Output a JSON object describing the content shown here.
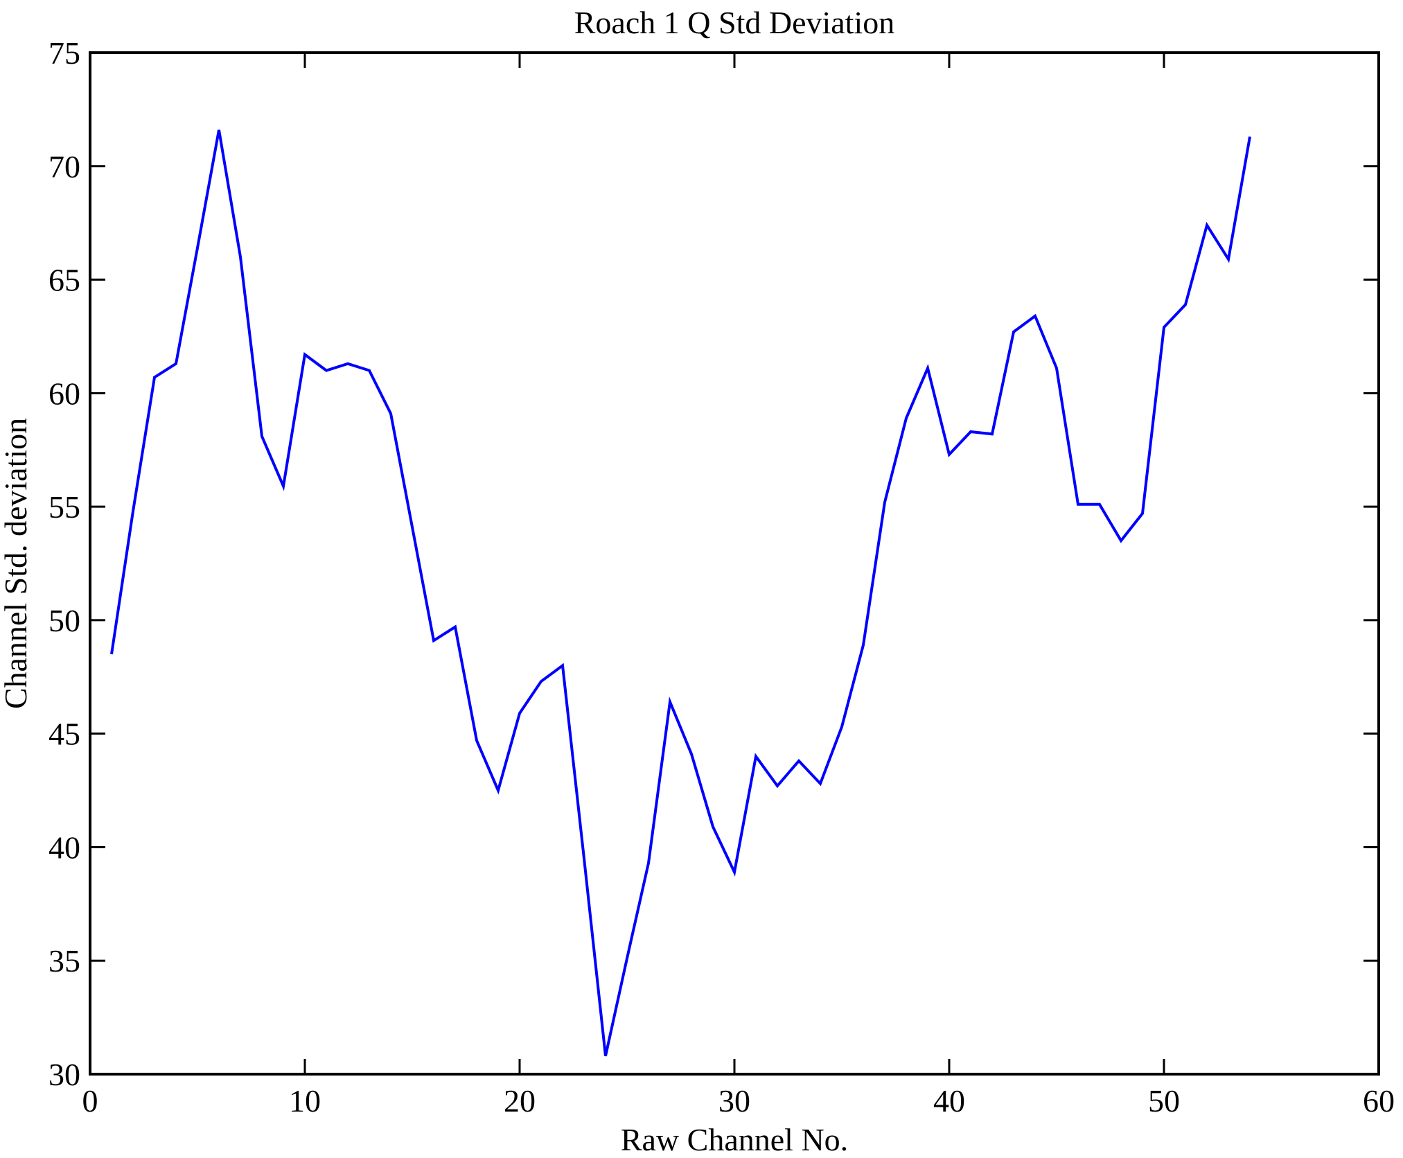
{
  "figure": {
    "title": "Roach 1 Q Std Deviation",
    "xlabel": "Raw Channel No.",
    "ylabel": "Channel Std. deviation",
    "background_color": "#ffffff",
    "frame_color": "#000000",
    "line_color": "#0000ff"
  },
  "chart_data": {
    "type": "line",
    "title": "Roach 1 Q Std Deviation",
    "xlabel": "Raw Channel No.",
    "ylabel": "Channel Std. deviation",
    "xlim": [
      0,
      60
    ],
    "ylim": [
      30,
      75
    ],
    "x_ticks": [
      0,
      10,
      20,
      30,
      40,
      50,
      60
    ],
    "y_ticks": [
      30,
      35,
      40,
      45,
      50,
      55,
      60,
      65,
      70,
      75
    ],
    "grid": false,
    "legend": "none",
    "series_name": "Channel Std. deviation vs Raw Channel No.",
    "x": [
      1,
      2,
      3,
      4,
      5,
      6,
      7,
      8,
      9,
      10,
      11,
      12,
      13,
      14,
      15,
      16,
      17,
      18,
      19,
      20,
      21,
      22,
      23,
      24,
      25,
      26,
      27,
      28,
      29,
      30,
      31,
      32,
      33,
      34,
      35,
      36,
      37,
      38,
      39,
      40,
      41,
      42,
      43,
      44,
      45,
      46,
      47,
      48,
      49,
      50,
      51,
      52,
      53,
      54
    ],
    "y": [
      48.5,
      54.8,
      60.7,
      61.3,
      66.4,
      71.6,
      66.0,
      58.1,
      55.9,
      61.7,
      61.0,
      61.3,
      61.0,
      59.1,
      54.1,
      49.1,
      49.7,
      44.7,
      42.5,
      45.9,
      47.3,
      48.0,
      39.5,
      30.8,
      35.1,
      39.3,
      46.4,
      44.1,
      40.9,
      38.9,
      44.0,
      42.7,
      43.8,
      42.8,
      45.3,
      48.9,
      55.2,
      58.9,
      61.1,
      57.3,
      58.3,
      58.2,
      62.7,
      63.4,
      61.1,
      55.1,
      55.1,
      53.5,
      54.7,
      62.9,
      63.9,
      67.4,
      65.9,
      71.3
    ]
  }
}
